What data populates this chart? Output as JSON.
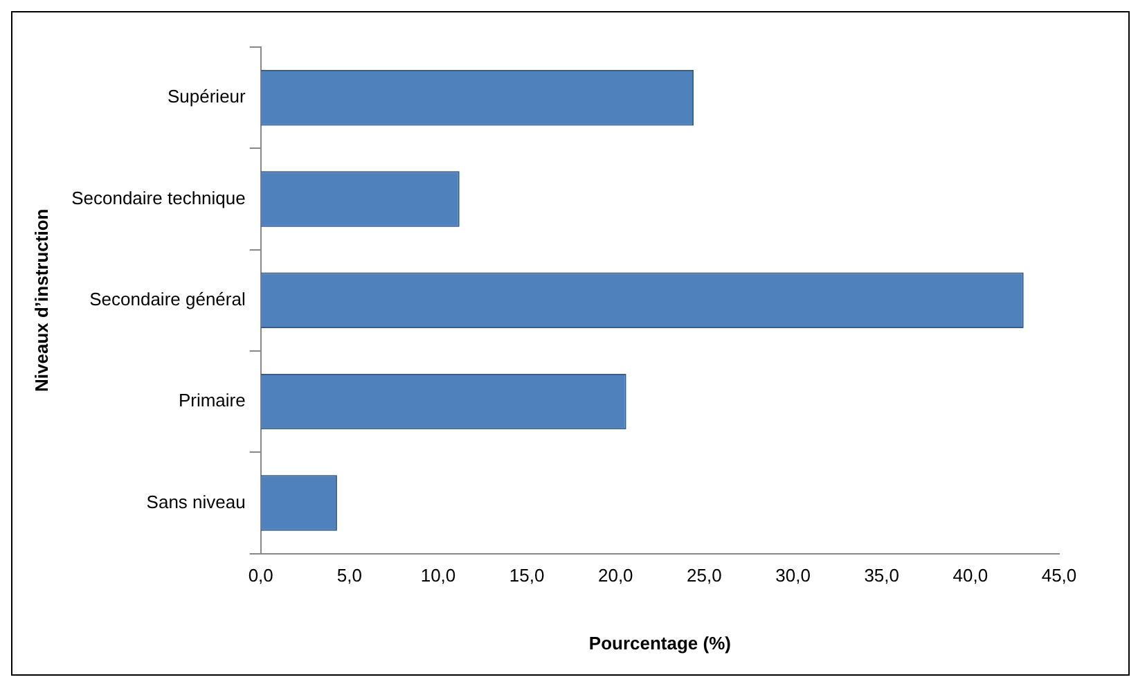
{
  "chart_data": {
    "type": "bar",
    "orientation": "horizontal",
    "categories": [
      "Supérieur",
      "Secondaire technique",
      "Secondaire général",
      "Primaire",
      "Sans niveau"
    ],
    "values": [
      24.4,
      11.2,
      43.0,
      20.6,
      4.3
    ],
    "color": "#4f81bd",
    "xlim": [
      0,
      45
    ],
    "xticks": [
      {
        "value": 0,
        "label": "0,0"
      },
      {
        "value": 5,
        "label": "5,0"
      },
      {
        "value": 10,
        "label": "10,0"
      },
      {
        "value": 15,
        "label": "15,0"
      },
      {
        "value": 20,
        "label": "20,0"
      },
      {
        "value": 25,
        "label": "25,0"
      },
      {
        "value": 30,
        "label": "30,0"
      },
      {
        "value": 35,
        "label": "35,0"
      },
      {
        "value": 40,
        "label": "40,0"
      },
      {
        "value": 45,
        "label": "45,0"
      }
    ],
    "xlabel": "Pourcentage (%)",
    "ylabel": "Niveaux d’instruction",
    "grid": false,
    "legend": false
  }
}
